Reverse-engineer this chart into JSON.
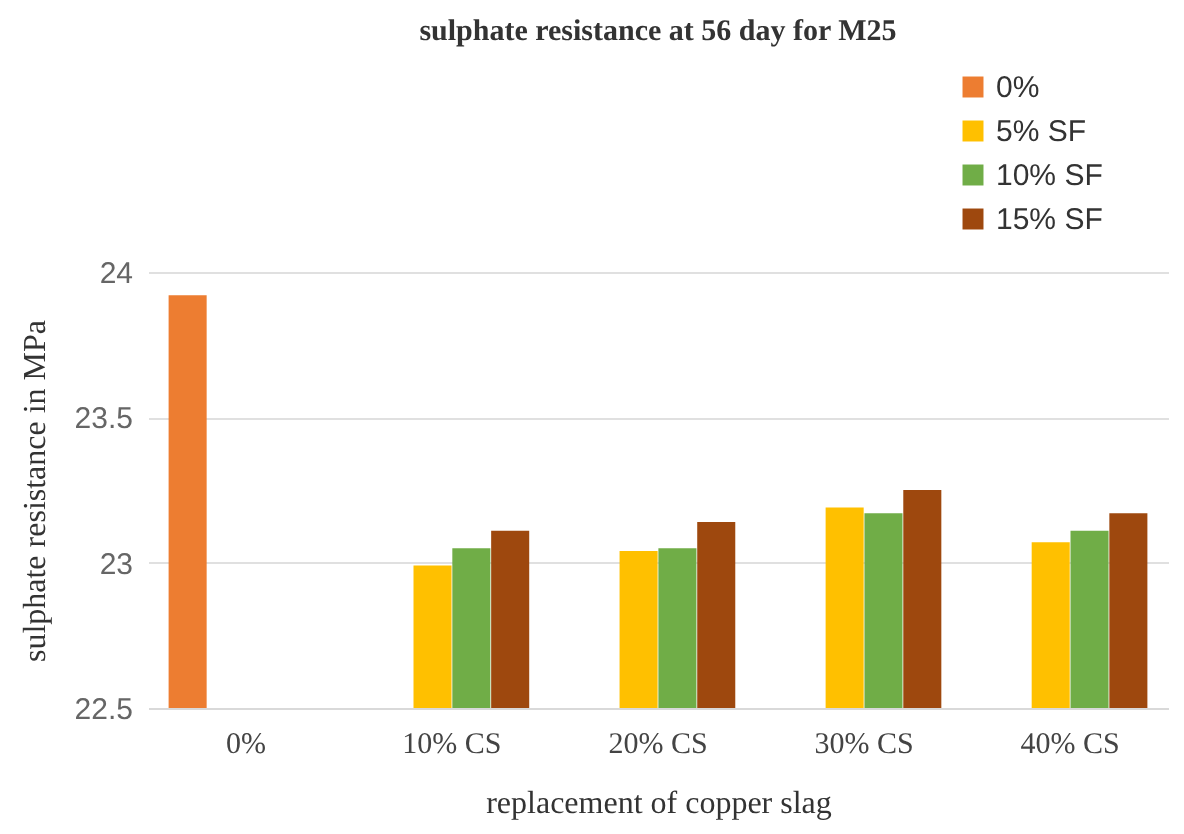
{
  "chart_data": {
    "type": "bar",
    "title": "sulphate resistance at 56 day for M25",
    "xlabel": "replacement of copper slag",
    "ylabel": "sulphate resistance in MPa",
    "categories": [
      "0%",
      "10% CS",
      "20% CS",
      "30% CS",
      "40% CS"
    ],
    "series": [
      {
        "name": "0%",
        "color": "#ed7d31",
        "values": [
          23.92,
          null,
          null,
          null,
          null
        ]
      },
      {
        "name": "5% SF",
        "color": "#ffc000",
        "values": [
          null,
          22.99,
          23.04,
          23.19,
          23.07
        ]
      },
      {
        "name": "10% SF",
        "color": "#70ad47",
        "values": [
          null,
          23.05,
          23.05,
          23.17,
          23.11
        ]
      },
      {
        "name": "15% SF",
        "color": "#9e480e",
        "values": [
          null,
          23.11,
          23.14,
          23.25,
          23.17
        ]
      }
    ],
    "ylim": [
      22.5,
      24
    ],
    "yticks": [
      22.5,
      23,
      23.5,
      24
    ],
    "grid": "y",
    "legend": "top right"
  }
}
